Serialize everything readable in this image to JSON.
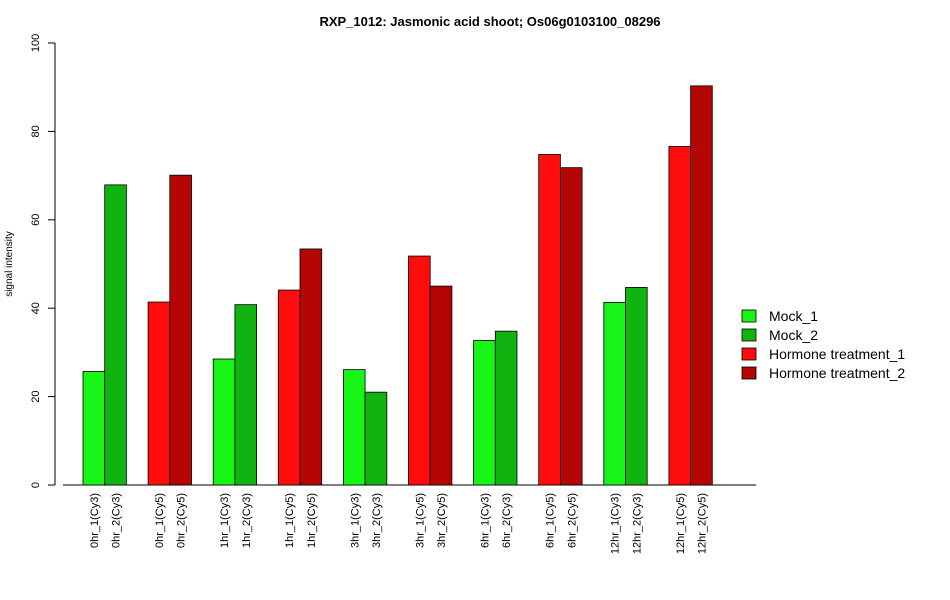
{
  "chart_data": {
    "type": "bar",
    "title": "RXP_1012: Jasmonic acid shoot; Os06g0103100_08296",
    "xlabel": "",
    "ylabel": "signal intensity",
    "ylim": [
      0,
      100
    ],
    "yticks": [
      0,
      20,
      40,
      60,
      80,
      100
    ],
    "grid": false,
    "legend_position": "right",
    "series": [
      {
        "name": "Mock_1",
        "color": "#16f516"
      },
      {
        "name": "Mock_2",
        "color": "#10b310"
      },
      {
        "name": "Hormone treatment_1",
        "color": "#ff0d0d"
      },
      {
        "name": "Hormone treatment_2",
        "color": "#b50505"
      }
    ],
    "bars": [
      {
        "label": "0hr_1(Cy3)",
        "value": 25.7,
        "series": 0
      },
      {
        "label": "0hr_2(Cy3)",
        "value": 67.9,
        "series": 1
      },
      {
        "label": "0hr_1(Cy5)",
        "value": 41.4,
        "series": 2
      },
      {
        "label": "0hr_2(Cy5)",
        "value": 70.1,
        "series": 3
      },
      {
        "label": "1hr_1(Cy3)",
        "value": 28.5,
        "series": 0
      },
      {
        "label": "1hr_2(Cy3)",
        "value": 40.8,
        "series": 1
      },
      {
        "label": "1hr_1(Cy5)",
        "value": 44.1,
        "series": 2
      },
      {
        "label": "1hr_2(Cy5)",
        "value": 53.4,
        "series": 3
      },
      {
        "label": "3hr_1(Cy3)",
        "value": 26.1,
        "series": 0
      },
      {
        "label": "3hr_2(Cy3)",
        "value": 21.0,
        "series": 1
      },
      {
        "label": "3hr_1(Cy5)",
        "value": 51.8,
        "series": 2
      },
      {
        "label": "3hr_2(Cy5)",
        "value": 45.0,
        "series": 3
      },
      {
        "label": "6hr_1(Cy3)",
        "value": 32.7,
        "series": 0
      },
      {
        "label": "6hr_2(Cy3)",
        "value": 34.8,
        "series": 1
      },
      {
        "label": "6hr_1(Cy5)",
        "value": 74.8,
        "series": 2
      },
      {
        "label": "6hr_2(Cy5)",
        "value": 71.8,
        "series": 3
      },
      {
        "label": "12hr_1(Cy3)",
        "value": 41.3,
        "series": 0
      },
      {
        "label": "12hr_2(Cy3)",
        "value": 44.7,
        "series": 1
      },
      {
        "label": "12hr_1(Cy5)",
        "value": 76.6,
        "series": 2
      },
      {
        "label": "12hr_2(Cy5)",
        "value": 90.3,
        "series": 3
      }
    ]
  }
}
